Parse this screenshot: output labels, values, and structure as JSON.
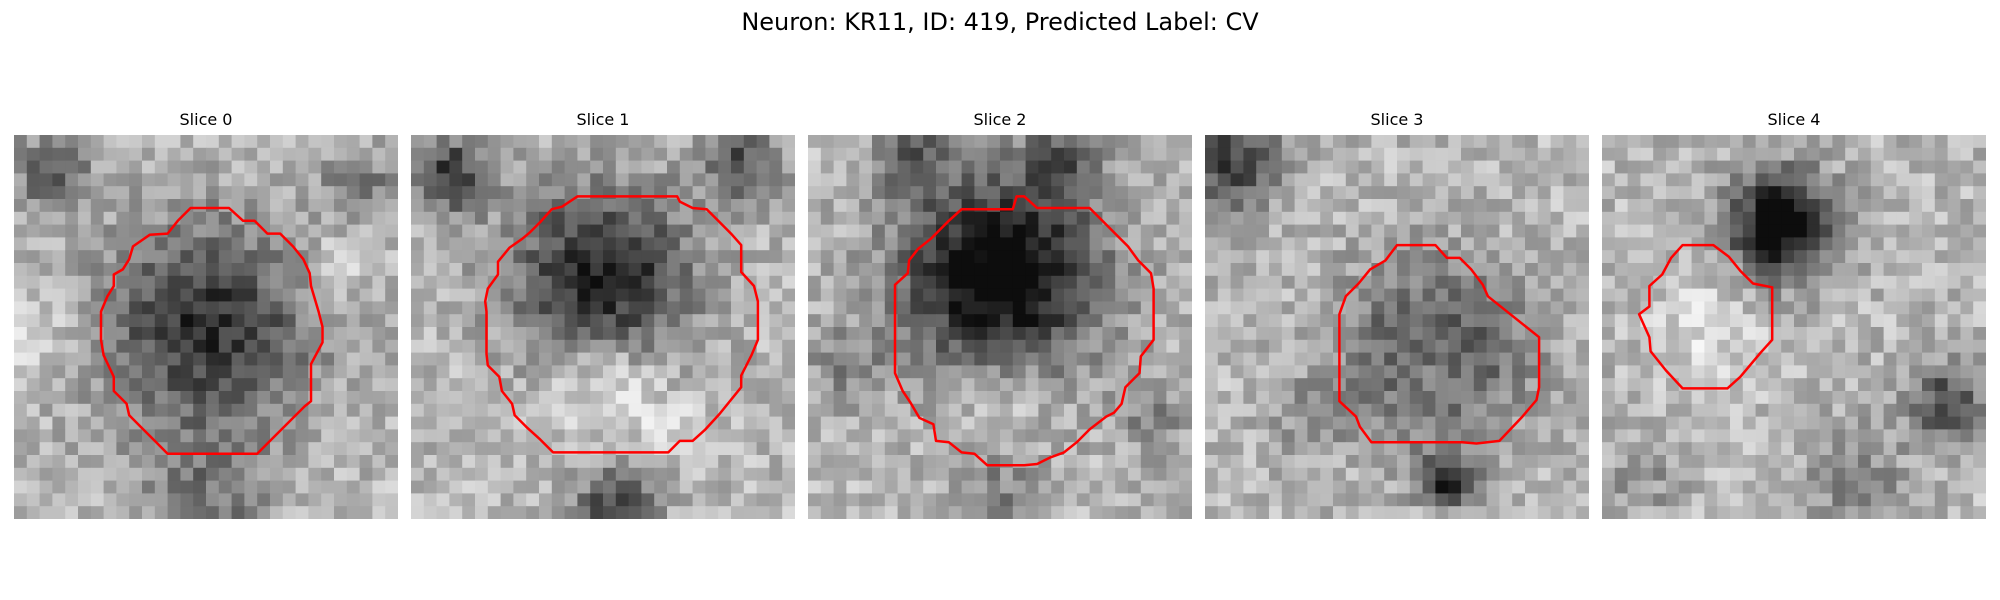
{
  "title": "Neuron: KR11, ID: 419, Predicted Label: CV",
  "contour_color": "#ff0000",
  "panels": [
    {
      "title": "Slice 0"
    },
    {
      "title": "Slice 1"
    },
    {
      "title": "Slice 2"
    },
    {
      "title": "Slice 3"
    },
    {
      "title": "Slice 4"
    }
  ]
}
